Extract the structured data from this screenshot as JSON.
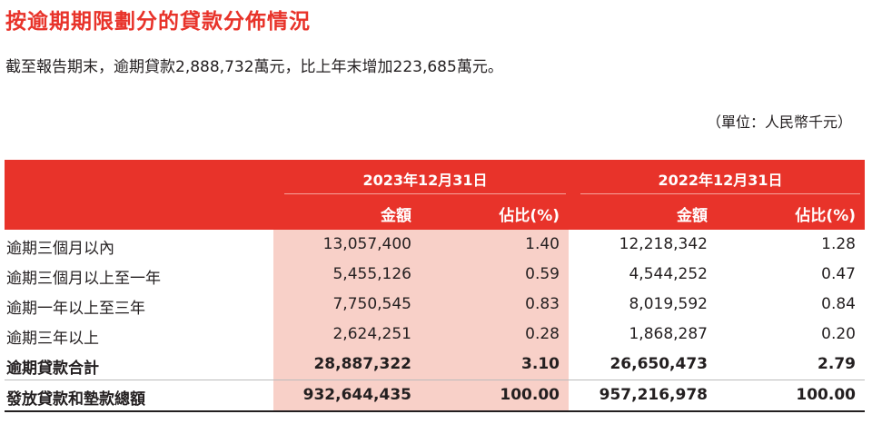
{
  "title": "按逾期期限劃分的貸款分佈情況",
  "subtitle": "截至報告期末，逾期貸款2,888,732萬元，比上年末增加223,685萬元。",
  "unit": "（單位：人民幣千元）",
  "colors": {
    "accent": "#e8332a",
    "shade": "#f8d0c8"
  },
  "table": {
    "period_2023": "2023年12月31日",
    "period_2022": "2022年12月31日",
    "col_amount": "金額",
    "col_pct": "佔比(%)",
    "rows": [
      {
        "label": "逾期三個月以內",
        "a2023": "13,057,400",
        "p2023": "1.40",
        "a2022": "12,218,342",
        "p2022": "1.28"
      },
      {
        "label": "逾期三個月以上至一年",
        "a2023": "5,455,126",
        "p2023": "0.59",
        "a2022": "4,544,252",
        "p2022": "0.47"
      },
      {
        "label": "逾期一年以上至三年",
        "a2023": "7,750,545",
        "p2023": "0.83",
        "a2022": "8,019,592",
        "p2022": "0.84"
      },
      {
        "label": "逾期三年以上",
        "a2023": "2,624,251",
        "p2023": "0.28",
        "a2022": "1,868,287",
        "p2022": "0.20"
      },
      {
        "label": "逾期貸款合計",
        "a2023": "28,887,322",
        "p2023": "3.10",
        "a2022": "26,650,473",
        "p2022": "2.79"
      },
      {
        "label": "發放貸款和墊款總額",
        "a2023": "932,644,435",
        "p2023": "100.00",
        "a2022": "957,216,978",
        "p2022": "100.00"
      }
    ]
  }
}
